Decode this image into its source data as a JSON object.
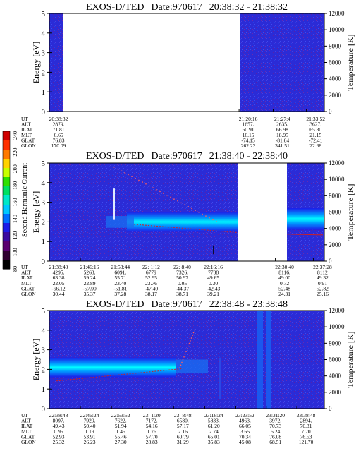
{
  "figure": {
    "colorbar": {
      "label": "Second Harmonic Current",
      "ticks": [
        "240",
        "220",
        "200",
        "180",
        "160",
        "140",
        "120",
        "100",
        "80"
      ],
      "colors": [
        "#d00000",
        "#ff3000",
        "#ff7a00",
        "#ffd200",
        "#c8ff00",
        "#2ee000",
        "#00e060",
        "#00e8c8",
        "#00c8ff",
        "#0070ff",
        "#1c1ce8",
        "#3a0aa0",
        "#5a0070",
        "#300030",
        "#000000"
      ]
    },
    "panels": [
      {
        "title_left": "EXOS-D/TED",
        "title_date": "Date:970617",
        "title_time": "20:38:32 - 21:38:32",
        "ylabel": "Energy [eV]",
        "y2label": "Temperature [K]",
        "yticks": [
          "0",
          "1",
          "2",
          "3",
          "4",
          "5"
        ],
        "y2ticks": [
          "0",
          "2000",
          "4000",
          "6000",
          "8000",
          "10000",
          "12000"
        ],
        "row_labels": [
          "UT",
          "ALT",
          "ILAT",
          "MLT",
          "GLAT",
          "GLON"
        ],
        "columns": [
          {
            "f": 0.0,
            "vals": [
              "20:38:32",
              "2879.",
              "71.81",
              "6.65",
              "76.83",
              "170.09"
            ]
          },
          {
            "f": 0.69,
            "vals": [
              "21:20:16",
              "1657.",
              "60.91",
              "16.15",
              "-74.15",
              "262.22"
            ]
          },
          {
            "f": 0.814,
            "vals": [
              "21:27:4",
              "2635.",
              "66.98",
              "18.95",
              "-81.04",
              "341.51"
            ]
          },
          {
            "f": 0.935,
            "vals": [
              "21:33:52",
              "3627.",
              "65.80",
              "21.15",
              "-72.41",
              "22.68"
            ]
          }
        ]
      },
      {
        "title_left": "EXOS-D/TED",
        "title_date": "Date:970617",
        "title_time": "21:38:40 - 22:38:40",
        "ylabel": "Energy [eV]",
        "y2label": "Temperature [K]",
        "yticks": [
          "0",
          "1",
          "2",
          "3",
          "4",
          "5"
        ],
        "y2ticks": [
          "0",
          "2000",
          "4000",
          "6000",
          "8000",
          "10000",
          "12000"
        ],
        "row_labels": [
          "UT",
          "ALT",
          "ILAT",
          "MLT",
          "GLAT",
          "GLON"
        ],
        "columns": [
          {
            "f": 0.0,
            "vals": [
              "21:38:40",
              "4295.",
              "63.38",
              "22.05",
              "-66.12",
              "30.44"
            ]
          },
          {
            "f": 0.113,
            "vals": [
              "21:46:16",
              "5263.",
              "59.24",
              "22.89",
              "-57.90",
              "35.37"
            ]
          },
          {
            "f": 0.225,
            "vals": [
              "21:53:44",
              "6091.",
              "55.71",
              "23.40",
              "-51.81",
              "37.28"
            ]
          },
          {
            "f": 0.337,
            "vals": [
              "22: 1:12",
              "6779",
              "52.95",
              "23.76",
              "-47.40",
              "38.17"
            ]
          },
          {
            "f": 0.45,
            "vals": [
              "22: 8:40",
              "7326.",
              "50.97",
              "0.05",
              "-44.37",
              "38.71"
            ]
          },
          {
            "f": 0.563,
            "vals": [
              "22:16:16",
              "7738",
              "49.65",
              "0.30",
              "-42.43",
              "39.21"
            ]
          },
          {
            "f": 0.822,
            "vals": [
              "22:30:40",
              "8116.",
              "49.00",
              "0.72",
              "52.48",
              "24.31"
            ]
          },
          {
            "f": 0.96,
            "vals": [
              "22:37:28",
              "8112",
              "49.32",
              "0.91",
              "52.82",
              "25.16"
            ]
          }
        ]
      },
      {
        "title_left": "EXOS-D/TED",
        "title_date": "Date:970617",
        "title_time": "22:38:48 - 23:38:48",
        "ylabel": "Energy [eV]",
        "y2label": "Temperature [K]",
        "yticks": [
          "0",
          "1",
          "2",
          "3",
          "4",
          "5"
        ],
        "y2ticks": [
          "0",
          "2000",
          "4000",
          "6000",
          "8000",
          "10000",
          "12000"
        ],
        "row_labels": [
          "UT",
          "ALT",
          "ILAT",
          "MLT",
          "GLAT",
          "GLON"
        ],
        "columns": [
          {
            "f": 0.0,
            "vals": [
              "22:38:48",
              "8097.",
              "49.43",
              "0.95",
              "52.93",
              "25.32"
            ]
          },
          {
            "f": 0.113,
            "vals": [
              "22:46:24",
              "7929.",
              "50.40",
              "1.19",
              "53.91",
              "26.23"
            ]
          },
          {
            "f": 0.226,
            "vals": [
              "22:53:52",
              "7622.",
              "51.94",
              "1.45",
              "55.46",
              "27.30"
            ]
          },
          {
            "f": 0.339,
            "vals": [
              "23: 1:20",
              "7172.",
              "54.16",
              "1.76",
              "57.70",
              "28.83"
            ]
          },
          {
            "f": 0.452,
            "vals": [
              "23: 8:48",
              "6580.",
              "57.17",
              "2.16",
              "60.79",
              "31.29"
            ]
          },
          {
            "f": 0.565,
            "vals": [
              "23:16:24",
              "5833.",
              "61.20",
              "2.74",
              "65.01",
              "35.83"
            ]
          },
          {
            "f": 0.678,
            "vals": [
              "23:23:52",
              "4963.",
              "66.05",
              "3.65",
              "70.34",
              "45.08"
            ]
          },
          {
            "f": 0.789,
            "vals": [
              "23:31:20",
              "3972.",
              "70.73",
              "5.24",
              "76.08",
              "68.51"
            ]
          },
          {
            "f": 0.9,
            "vals": [
              "23:38:48",
              "2894.",
              "70.31",
              "7.70",
              "76.53",
              "121.70"
            ]
          }
        ]
      }
    ]
  },
  "chart_data": [
    {
      "type": "heatmap",
      "title": "EXOS-D/TED Date:970617 20:38:32 - 21:38:32",
      "xlabel": "UT",
      "ylabel": "Energy [eV]",
      "y2label": "Temperature [K]",
      "ylim": [
        0,
        5
      ],
      "y2lim": [
        0,
        12000
      ],
      "data_coverage": [
        {
          "x_from": "20:38:32",
          "x_to": "20:40:30",
          "fill": "blue background"
        },
        {
          "x_from": "21:20:16",
          "x_to": "21:38:32",
          "fill": "blue background"
        }
      ]
    },
    {
      "type": "heatmap",
      "title": "EXOS-D/TED Date:970617 21:38:40 - 22:38:40",
      "xlabel": "UT",
      "ylabel": "Energy [eV]",
      "y2label": "Temperature [K]",
      "ylim": [
        0,
        5
      ],
      "y2lim": [
        0,
        12000
      ],
      "features": [
        {
          "kind": "intense band",
          "energy_center_eV": 2.0,
          "x_from": "21:46:16",
          "x_to": "22:16:16"
        },
        {
          "kind": "intense band",
          "energy_center_eV": 2.2,
          "x_from": "22:30:40",
          "x_to": "22:38:40"
        },
        {
          "kind": "temperature trace",
          "value_K_at_start": 4500,
          "value_K_at_end": 3200
        }
      ]
    },
    {
      "type": "heatmap",
      "title": "EXOS-D/TED Date:970617 22:38:48 - 23:38:48",
      "xlabel": "UT",
      "ylabel": "Energy [eV]",
      "y2label": "Temperature [K]",
      "ylim": [
        0,
        5
      ],
      "y2lim": [
        0,
        12000
      ],
      "features": [
        {
          "kind": "intense band",
          "energy_center_eV": 2.1,
          "x_from": "22:38:48",
          "x_to": "23: 8:48"
        },
        {
          "kind": "temperature trace",
          "value_K_at_start": 3300,
          "value_K_at_end": 6000
        },
        {
          "kind": "vertical stripes",
          "x_from": "23:16:24",
          "x_to": "23:23:52"
        }
      ]
    }
  ]
}
